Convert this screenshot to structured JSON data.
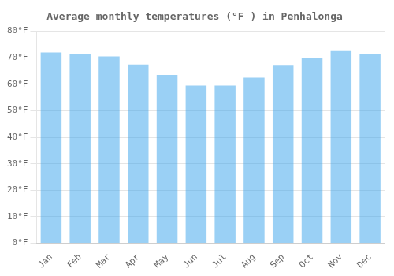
{
  "chart_data": {
    "type": "bar",
    "title": "Average monthly temperatures (°F ) in Penhalonga",
    "categories": [
      "Jan",
      "Feb",
      "Mar",
      "Apr",
      "May",
      "Jun",
      "Jul",
      "Aug",
      "Sep",
      "Oct",
      "Nov",
      "Dec"
    ],
    "values": [
      72,
      71.5,
      70.5,
      67.5,
      63.5,
      59.5,
      59.5,
      62.5,
      67,
      70,
      72.5,
      71.5
    ],
    "ylim": [
      0,
      80
    ],
    "yticks": [
      {
        "value": 0,
        "label": "0°F"
      },
      {
        "value": 10,
        "label": "10°F"
      },
      {
        "value": 20,
        "label": "20°F"
      },
      {
        "value": 30,
        "label": "30°F"
      },
      {
        "value": 40,
        "label": "40°F"
      },
      {
        "value": 50,
        "label": "50°F"
      },
      {
        "value": 60,
        "label": "60°F"
      },
      {
        "value": 70,
        "label": "70°F"
      },
      {
        "value": 80,
        "label": "80°F"
      }
    ],
    "grid": true
  }
}
